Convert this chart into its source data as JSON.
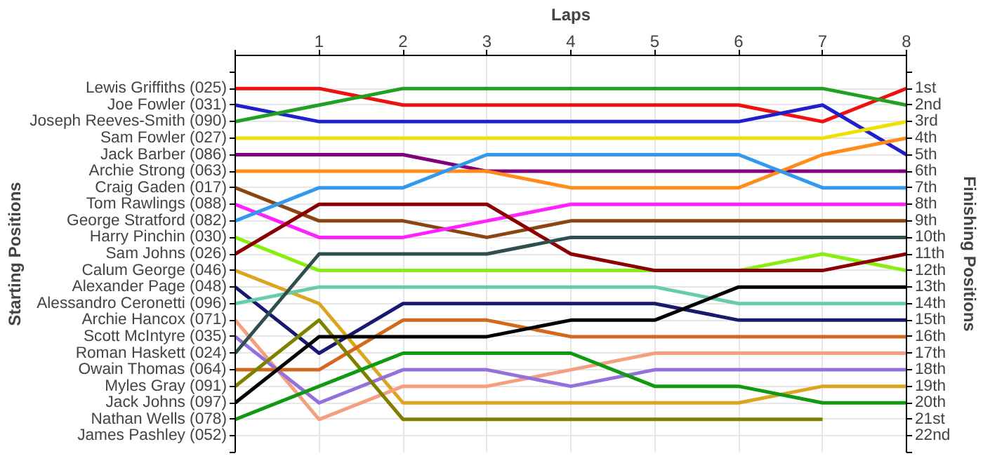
{
  "chart_data": {
    "type": "line",
    "xlabel": "Laps",
    "annotations": [
      "Starting Positions"
    ],
    "y2label": "Finishing Positions",
    "x": [
      0,
      1,
      2,
      3,
      4,
      5,
      6,
      7,
      8
    ],
    "xlim": [
      0,
      8
    ],
    "xticks": [
      {
        "value": 0,
        "label": null
      },
      1,
      2,
      3,
      4,
      5,
      6,
      7,
      8
    ],
    "y_categories": [
      "Lewis Griffiths (025)",
      "Joe Fowler (031)",
      "Joseph Reeves-Smith (090)",
      "Sam Fowler (027)",
      "Jack Barber (086)",
      "Archie Strong (063)",
      "Craig Gaden (017)",
      "Tom Rawlings (088)",
      "George Stratford (082)",
      "Harry Pinchin (030)",
      "Sam Johns (026)",
      "Calum George (046)",
      "Alexander Page (048)",
      "Alessandro Ceronetti (096)",
      "Archie Hancox (071)",
      "Scott McIntyre (035)",
      "Roman Haskett (024)",
      "Owain Thomas (064)",
      "Myles Gray (091)",
      "Jack Johns (097)",
      "Nathan Wells (078)",
      "James Pashley (052)"
    ],
    "y2lim": [
      23,
      -1
    ],
    "y2ticks": [
      {
        "value": 0,
        "label": null
      },
      {
        "value": 1,
        "label": "1st"
      },
      {
        "value": 2,
        "label": "2nd"
      },
      {
        "value": 3,
        "label": "3rd"
      },
      {
        "value": 4,
        "label": "4th"
      },
      {
        "value": 5,
        "label": "5th"
      },
      {
        "value": 6,
        "label": "6th"
      },
      {
        "value": 7,
        "label": "7th"
      },
      {
        "value": 8,
        "label": "8th"
      },
      {
        "value": 9,
        "label": "9th"
      },
      {
        "value": 10,
        "label": "10th"
      },
      {
        "value": 11,
        "label": "11th"
      },
      {
        "value": 12,
        "label": "12th"
      },
      {
        "value": 13,
        "label": "13th"
      },
      {
        "value": 14,
        "label": "14th"
      },
      {
        "value": 15,
        "label": "15th"
      },
      {
        "value": 16,
        "label": "16th"
      },
      {
        "value": 17,
        "label": "17th"
      },
      {
        "value": 18,
        "label": "18th"
      },
      {
        "value": 19,
        "label": "19th"
      },
      {
        "value": 20,
        "label": "20th"
      },
      {
        "value": 21,
        "label": "21st"
      },
      {
        "value": 22,
        "label": "22nd"
      },
      {
        "value": 23,
        "label": null
      }
    ],
    "grid": true,
    "marker": "none",
    "line_style": "solid",
    "series": [
      {
        "color": "#ee1111",
        "axis": "y2",
        "values": [
          1,
          1,
          2,
          2,
          2,
          2,
          2,
          3,
          1
        ]
      },
      {
        "color": "#1f1fcc",
        "axis": "y2",
        "values": [
          2,
          3,
          3,
          3,
          3,
          3,
          3,
          2,
          5
        ]
      },
      {
        "color": "#22a022",
        "axis": "y2",
        "values": [
          3,
          2,
          1,
          1,
          1,
          1,
          1,
          1,
          2
        ]
      },
      {
        "color": "#f0e000",
        "axis": "y2",
        "values": [
          4,
          4,
          4,
          4,
          4,
          4,
          4,
          4,
          3
        ]
      },
      {
        "color": "#800080",
        "axis": "y2",
        "values": [
          5,
          5,
          5,
          6,
          6,
          6,
          6,
          6,
          6
        ]
      },
      {
        "color": "#ff8c1a",
        "axis": "y2",
        "values": [
          6,
          6,
          6,
          6,
          7,
          7,
          7,
          5,
          4
        ]
      },
      {
        "color": "#8b4513",
        "axis": "y2",
        "values": [
          7,
          9,
          9,
          10,
          9,
          9,
          9,
          9,
          9
        ]
      },
      {
        "color": "#ff22ff",
        "axis": "y2",
        "values": [
          8,
          10,
          10,
          9,
          8,
          8,
          8,
          8,
          8
        ]
      },
      {
        "color": "#3399ee",
        "axis": "y2",
        "values": [
          9,
          7,
          7,
          5,
          5,
          5,
          5,
          7,
          7
        ]
      },
      {
        "color": "#88ee11",
        "axis": "y2",
        "values": [
          10,
          12,
          12,
          12,
          12,
          12,
          12,
          11,
          12
        ]
      },
      {
        "color": "#8b0000",
        "axis": "y2",
        "values": [
          11,
          8,
          8,
          8,
          11,
          12,
          12,
          12,
          11
        ]
      },
      {
        "color": "#daa520",
        "axis": "y2",
        "values": [
          12,
          14,
          20,
          20,
          20,
          20,
          20,
          19,
          19
        ]
      },
      {
        "color": "#191970",
        "axis": "y2",
        "values": [
          13,
          17,
          14,
          14,
          14,
          14,
          15,
          15,
          15
        ]
      },
      {
        "color": "#66cdaa",
        "axis": "y2",
        "values": [
          14,
          13,
          13,
          13,
          13,
          13,
          14,
          14,
          14
        ]
      },
      {
        "color": "#f4a080",
        "axis": "y2",
        "values": [
          15,
          21,
          19,
          19,
          18,
          17,
          17,
          17,
          17
        ]
      },
      {
        "color": "#9370db",
        "axis": "y2",
        "values": [
          16,
          20,
          18,
          18,
          19,
          18,
          18,
          18,
          18
        ]
      },
      {
        "color": "#2f4f4f",
        "axis": "y2",
        "values": [
          17,
          11,
          11,
          11,
          10,
          10,
          10,
          10,
          10
        ]
      },
      {
        "color": "#d2691e",
        "axis": "y2",
        "values": [
          18,
          18,
          15,
          15,
          16,
          16,
          16,
          16,
          16
        ]
      },
      {
        "color": "#808000",
        "axis": "y2",
        "values": [
          19,
          15,
          21,
          21,
          21,
          21,
          21,
          21,
          null
        ]
      },
      {
        "color": "#000000",
        "axis": "y2",
        "values": [
          20,
          16,
          16,
          16,
          15,
          15,
          13,
          13,
          13
        ]
      },
      {
        "color": "#119911",
        "axis": "y2",
        "values": [
          21,
          19,
          17,
          17,
          17,
          19,
          19,
          20,
          20
        ]
      }
    ]
  }
}
